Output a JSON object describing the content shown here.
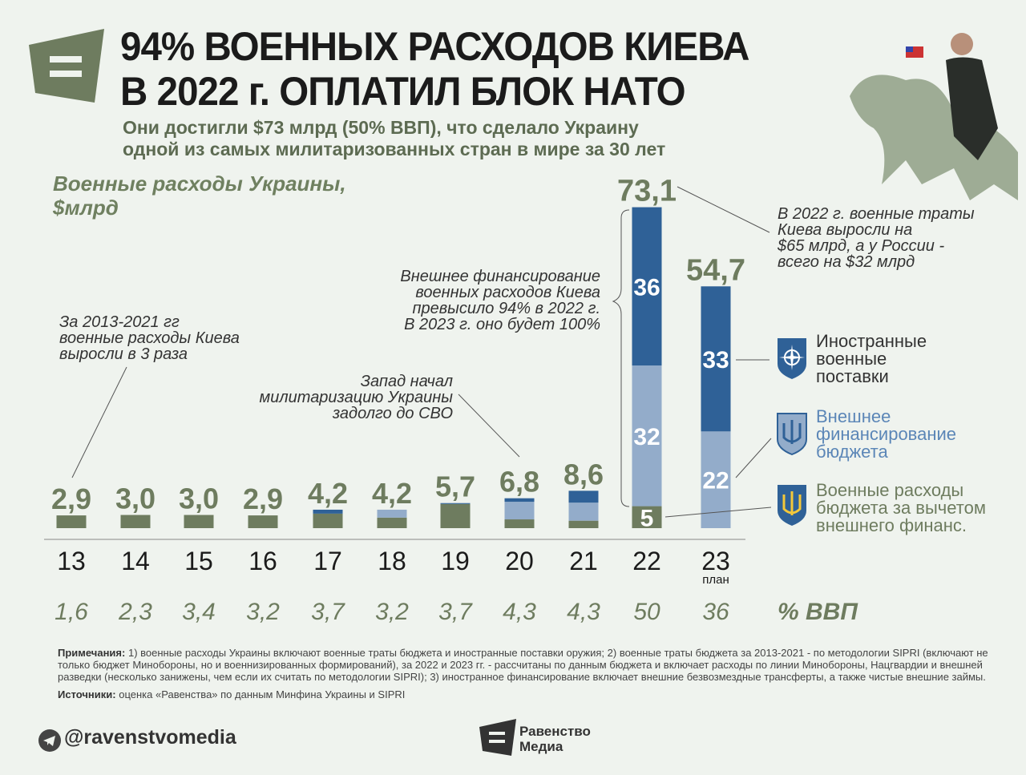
{
  "header": {
    "title_line1": "94% ВОЕННЫХ РАСХОДОВ КИЕВА",
    "title_line2": "В 2022 г. ОПЛАТИЛ БЛОК НАТО",
    "subtitle_line1": "Они достигли $73 млрд (50% ВВП), что сделало Украину",
    "subtitle_line2": "одной из самых милитаризованных стран в мире за 30 лет"
  },
  "colors": {
    "budget": "#6e7c5f",
    "external": "#93acca",
    "foreign": "#2f6197",
    "label": "#6e7c5f"
  },
  "chart_data": {
    "type": "bar",
    "stacked": true,
    "title_line1": "Военные расходы Украины,",
    "title_line2": "$млрд",
    "categories": [
      "13",
      "14",
      "15",
      "16",
      "17",
      "18",
      "19",
      "20",
      "21",
      "22",
      "23"
    ],
    "category_sublabels": {
      "23": "план"
    },
    "totals": [
      "2,9",
      "3,0",
      "3,0",
      "2,9",
      "4,2",
      "4,2",
      "5,7",
      "6,8",
      "8,6",
      "73,1",
      "54,7"
    ],
    "series": [
      {
        "name": "Военные расходы бюджета за вычетом внешнего финанс.",
        "key": "budget",
        "values": [
          2.9,
          3.0,
          3.0,
          2.9,
          3.3,
          2.4,
          5.5,
          2.0,
          1.7,
          5,
          0
        ]
      },
      {
        "name": "Внешнее финансирование бюджета",
        "key": "external",
        "values": [
          0,
          0,
          0,
          0,
          0,
          1.8,
          0,
          4.0,
          4.1,
          32,
          22
        ]
      },
      {
        "name": "Иностранные военные поставки",
        "key": "foreign",
        "values": [
          0,
          0,
          0,
          0,
          0.9,
          0,
          0.2,
          0.8,
          2.7,
          36,
          33
        ]
      }
    ],
    "segment_labels": {
      "22": [
        "5",
        "32",
        "36"
      ],
      "23": [
        "",
        "22",
        "33"
      ]
    },
    "gdp_share_label": "% ВВП",
    "gdp_share": [
      "1,6",
      "2,3",
      "3,4",
      "3,2",
      "3,7",
      "3,2",
      "3,7",
      "4,3",
      "4,3",
      "50",
      "36"
    ],
    "ylim": [
      0,
      75
    ]
  },
  "annotations": {
    "a1": [
      "За 2013-2021 гг",
      "военные расходы Киева",
      "выросли в 3 раза"
    ],
    "a2": [
      "Запад начал",
      "милитаризацию Украины",
      "задолго до СВО"
    ],
    "a3": [
      "Внешнее финансирование",
      "военных расходов Киева",
      "превысило 94% в 2022 г.",
      "В 2023 г. оно будет 100%"
    ],
    "a4": [
      "В 2022 г. военные траты",
      "Киева выросли на",
      "$65 млрд, а у России -",
      "всего на $32 млрд"
    ]
  },
  "legend": {
    "foreign": [
      "Иностранные",
      "военные",
      "поставки"
    ],
    "external": [
      "Внешнее",
      "финансирование",
      "бюджета"
    ],
    "budget": [
      "Военные расходы",
      "бюджета за вычетом",
      "внешнего финанс."
    ]
  },
  "notes": {
    "notes_label": "Примечания:",
    "notes_text": "1) военные расходы Украины включают военные траты бюджета и иностранные поставки оружия; 2) военные траты бюджета за 2013-2021 - по методологии SIPRI (включают не только бюджет Минобороны, но и военнизированных формирований), за 2022 и 2023 гг. - рассчитаны по данным бюджета и включает расходы по линии Минобороны, Нацгвардии и внешней разведки (несколько занижены, чем если их считать по методологии SIPRI); 3) иностранное финансирование включает внешние безвозмездные трансферты, а также чистые внешние займы.",
    "sources_label": "Источники:",
    "sources_text": "оценка «Равенства» по данным Минфина Украины и SIPRI"
  },
  "footer": {
    "handle": "@ravenstvomedia",
    "brand_line1": "Равенство",
    "brand_line2": "Медиа"
  }
}
